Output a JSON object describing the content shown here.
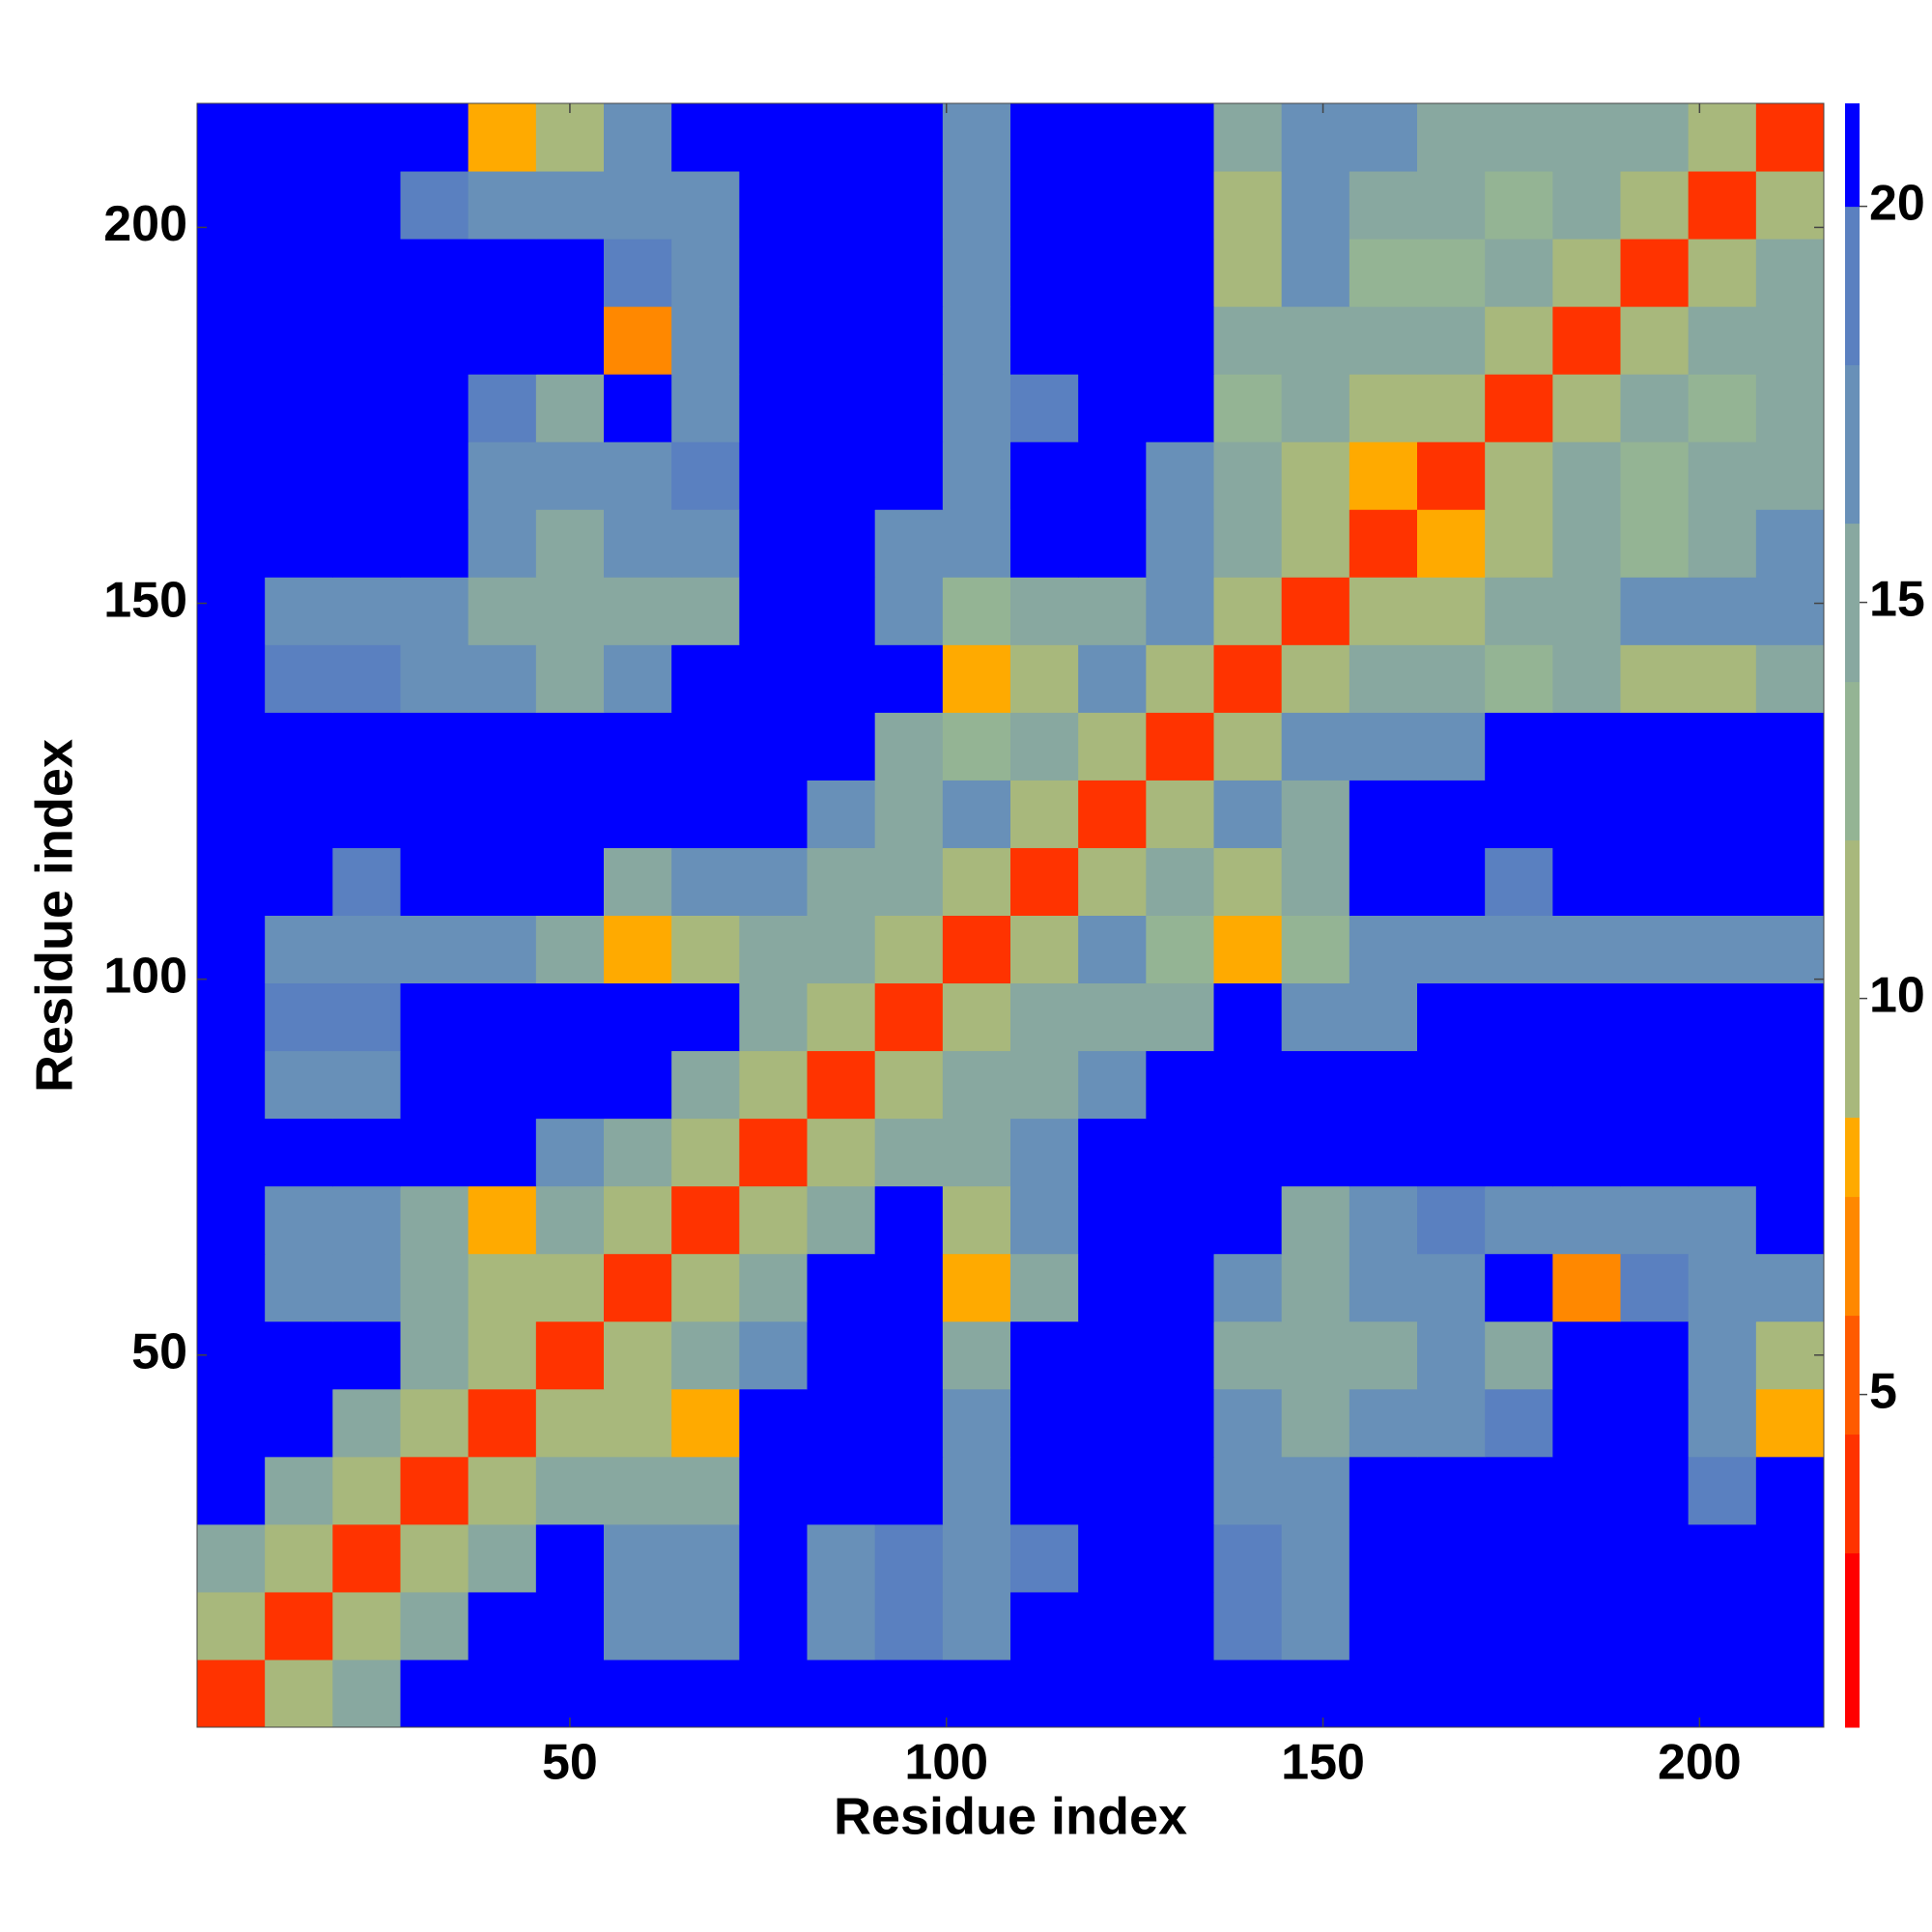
{
  "chart_data": {
    "type": "heatmap",
    "xlabel": "Residue index",
    "ylabel": "Residue index",
    "x_edges": [
      0.5,
      9.5,
      18.5,
      27.5,
      36.5,
      45.5,
      54.5,
      63.5,
      72.5,
      81.5,
      90.5,
      99.5,
      108.5,
      117.5,
      126.5,
      135.5,
      144.5,
      153.5,
      162.5,
      171.5,
      180.5,
      189.5,
      198.5,
      207.5,
      216.5
    ],
    "y_edges": [
      0.5,
      9.5,
      18.5,
      27.5,
      36.5,
      45.5,
      54.5,
      63.5,
      72.5,
      81.5,
      90.5,
      99.5,
      108.5,
      117.5,
      126.5,
      135.5,
      144.5,
      153.5,
      162.5,
      171.5,
      180.5,
      189.5,
      198.5,
      207.5,
      216.5
    ],
    "xlim": [
      0.5,
      216.5
    ],
    "ylim": [
      0.5,
      216.5
    ],
    "xticks": [
      50,
      100,
      150,
      200
    ],
    "yticks": [
      50,
      100,
      150,
      200
    ],
    "zlim": [
      0.8,
      21.3
    ],
    "zticks": [
      5,
      10,
      15,
      20
    ],
    "colorscale": [
      {
        "value": 0.8,
        "color": "#ff0000"
      },
      {
        "value": 3,
        "color": "#ff3300"
      },
      {
        "value": 4.5,
        "color": "#ff5a00"
      },
      {
        "value": 6,
        "color": "#ff8800"
      },
      {
        "value": 7.5,
        "color": "#ffaa00"
      },
      {
        "value": 8.5,
        "color": "#a8b87c"
      },
      {
        "value": 12,
        "color": "#94b494"
      },
      {
        "value": 14,
        "color": "#88a8a0"
      },
      {
        "value": 16,
        "color": "#6890b8"
      },
      {
        "value": 18,
        "color": "#5a80c0"
      },
      {
        "value": 20,
        "color": "#0000ff"
      }
    ],
    "z": [
      [
        4,
        11,
        15,
        21,
        21,
        21,
        21,
        21,
        21,
        21,
        21,
        21,
        21,
        21,
        21,
        21,
        21,
        21,
        21,
        21,
        21,
        21,
        21,
        21
      ],
      [
        11,
        4,
        11,
        14,
        21,
        21,
        17,
        16,
        21,
        17,
        18,
        17,
        21,
        21,
        21,
        18,
        16,
        21,
        21,
        21,
        21,
        21,
        21,
        21
      ],
      [
        15,
        11,
        4,
        11,
        14,
        21,
        16,
        16,
        21,
        17,
        18,
        17,
        18,
        21,
        21,
        18,
        16,
        21,
        21,
        21,
        21,
        21,
        21,
        21
      ],
      [
        21,
        14,
        11,
        4,
        11,
        14,
        15,
        14,
        21,
        21,
        21,
        17,
        21,
        21,
        21,
        17,
        17,
        21,
        21,
        21,
        21,
        21,
        18,
        21
      ],
      [
        21,
        21,
        14,
        11,
        4,
        11,
        9,
        8,
        21,
        21,
        21,
        16,
        21,
        21,
        21,
        17,
        15,
        16,
        17,
        18,
        21,
        21,
        16,
        8
      ],
      [
        21,
        21,
        21,
        14,
        11,
        4,
        11,
        14,
        16,
        21,
        21,
        14,
        21,
        21,
        21,
        15,
        15,
        15,
        17,
        15,
        21,
        21,
        16,
        9
      ],
      [
        21,
        17,
        16,
        15,
        9,
        11,
        4,
        11,
        15,
        21,
        21,
        8,
        15,
        21,
        21,
        16,
        15,
        16,
        17,
        21,
        7,
        18,
        17,
        17
      ],
      [
        21,
        16,
        16,
        14,
        8,
        14,
        11,
        4,
        11,
        15,
        21,
        9,
        17,
        21,
        21,
        21,
        15,
        16,
        18,
        16,
        16,
        17,
        17,
        21
      ],
      [
        21,
        21,
        21,
        21,
        21,
        16,
        15,
        11,
        4,
        11,
        14,
        15,
        17,
        21,
        21,
        21,
        21,
        21,
        21,
        21,
        21,
        21,
        21,
        21
      ],
      [
        21,
        17,
        17,
        21,
        21,
        21,
        21,
        15,
        11,
        4,
        11,
        15,
        14,
        16,
        21,
        21,
        21,
        21,
        21,
        21,
        21,
        21,
        21,
        21
      ],
      [
        21,
        18,
        18,
        21,
        21,
        21,
        21,
        21,
        14,
        11,
        4,
        11,
        15,
        14,
        15,
        21,
        16,
        17,
        21,
        21,
        21,
        21,
        21,
        21
      ],
      [
        21,
        17,
        17,
        17,
        16,
        14,
        8,
        9,
        15,
        15,
        11,
        4,
        11,
        16,
        13,
        8,
        13,
        16,
        17,
        17,
        16,
        16,
        17,
        17
      ],
      [
        21,
        21,
        18,
        21,
        21,
        21,
        15,
        17,
        17,
        14,
        15,
        11,
        4,
        11,
        15,
        9,
        15,
        21,
        21,
        18,
        21,
        21,
        21,
        21
      ],
      [
        21,
        21,
        21,
        21,
        21,
        21,
        21,
        21,
        21,
        16,
        14,
        16,
        11,
        4,
        11,
        16,
        15,
        21,
        21,
        21,
        21,
        21,
        21,
        21
      ],
      [
        21,
        21,
        21,
        21,
        21,
        21,
        21,
        21,
        21,
        21,
        15,
        13,
        15,
        11,
        4,
        11,
        16,
        16,
        17,
        21,
        21,
        21,
        21,
        21
      ],
      [
        21,
        18,
        18,
        17,
        17,
        15,
        16,
        21,
        21,
        21,
        21,
        8,
        9,
        16,
        11,
        4,
        11,
        14,
        14,
        12,
        14,
        9,
        10,
        15
      ],
      [
        21,
        16,
        16,
        17,
        15,
        15,
        15,
        15,
        21,
        21,
        16,
        13,
        15,
        15,
        16,
        11,
        4,
        11,
        9,
        14,
        15,
        16,
        16,
        17
      ],
      [
        21,
        21,
        21,
        21,
        16,
        15,
        16,
        16,
        21,
        21,
        17,
        16,
        21,
        21,
        16,
        14,
        11,
        4,
        8,
        11,
        14,
        13,
        15,
        17
      ],
      [
        21,
        21,
        21,
        21,
        17,
        17,
        17,
        18,
        21,
        21,
        21,
        17,
        21,
        21,
        17,
        14,
        9,
        8,
        4,
        11,
        14,
        13,
        15,
        15
      ],
      [
        21,
        21,
        21,
        21,
        18,
        15,
        21,
        16,
        21,
        21,
        21,
        17,
        18,
        21,
        21,
        12,
        14,
        11,
        11,
        4,
        11,
        15,
        13,
        14
      ],
      [
        21,
        21,
        21,
        21,
        21,
        21,
        7,
        16,
        21,
        21,
        21,
        16,
        21,
        21,
        21,
        14,
        15,
        14,
        14,
        11,
        4,
        11,
        14,
        14
      ],
      [
        21,
        21,
        21,
        21,
        21,
        21,
        18,
        17,
        21,
        21,
        21,
        16,
        21,
        21,
        21,
        9,
        16,
        13,
        13,
        15,
        11,
        4,
        11,
        15
      ],
      [
        21,
        21,
        21,
        18,
        16,
        16,
        17,
        17,
        21,
        21,
        21,
        17,
        21,
        21,
        21,
        10,
        16,
        15,
        15,
        13,
        14,
        11,
        4,
        11
      ],
      [
        21,
        21,
        21,
        21,
        8,
        9,
        17,
        21,
        21,
        21,
        21,
        17,
        21,
        21,
        21,
        15,
        17,
        17,
        15,
        14,
        14,
        15,
        11,
        4
      ]
    ]
  }
}
